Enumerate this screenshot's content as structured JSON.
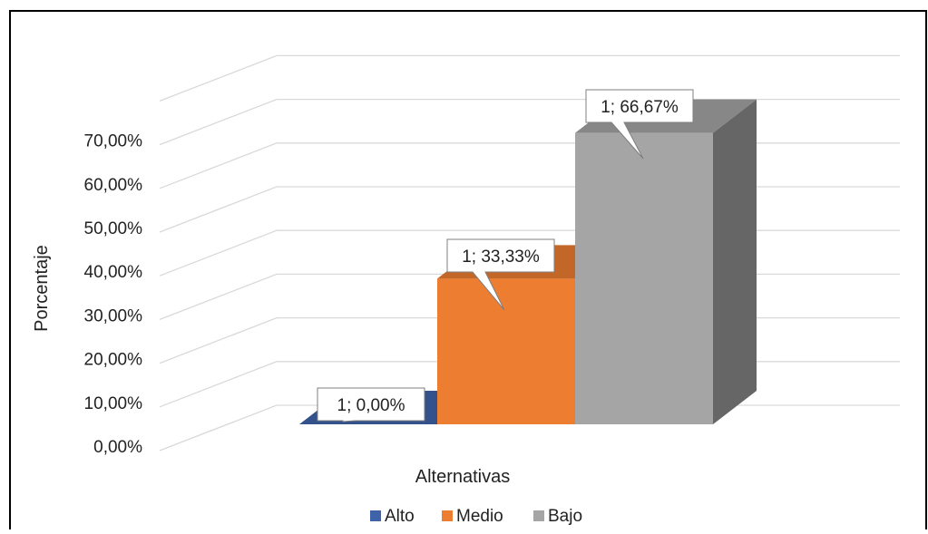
{
  "chart_data": {
    "type": "bar",
    "style": "3d-clustered-column",
    "categories": [
      "1"
    ],
    "series": [
      {
        "name": "Alto",
        "values": [
          0.0
        ],
        "color": "#3E63A9",
        "label": "1; 0,00%"
      },
      {
        "name": "Medio",
        "values": [
          33.33
        ],
        "color": "#ED7D31",
        "label": "1; 33,33%"
      },
      {
        "name": "Bajo",
        "values": [
          66.67
        ],
        "color": "#A5A5A5",
        "label": "1; 66,67%"
      }
    ],
    "yticks": [
      "0,00%",
      "10,00%",
      "20,00%",
      "30,00%",
      "40,00%",
      "50,00%",
      "60,00%",
      "70,00%"
    ],
    "ylim": [
      0,
      80
    ],
    "xlabel": "Alternativas",
    "ylabel": "Porcentaje",
    "grid": true,
    "legend": "bottom"
  }
}
